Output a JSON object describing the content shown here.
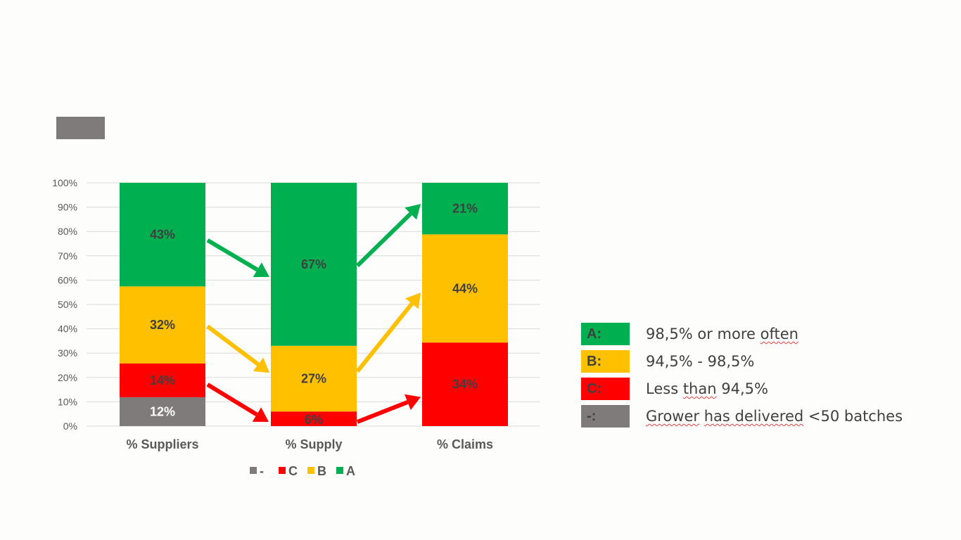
{
  "colors": {
    "A": "#00b050",
    "B": "#ffc000",
    "C": "#ff0000",
    "-": "#7f7b7b",
    "title_block": "#7f7b7b",
    "axis_text": "#595959",
    "label_text": "#404040",
    "grid": "#d9d9d9"
  },
  "chart_data": {
    "type": "bar",
    "stacked": true,
    "categories": [
      "% Suppliers",
      "% Supply",
      "% Claims"
    ],
    "series": [
      {
        "name": "-",
        "values": [
          12,
          0,
          0
        ],
        "labels": [
          "12%",
          "",
          ""
        ]
      },
      {
        "name": "C",
        "values": [
          14,
          6,
          34
        ],
        "labels": [
          "14%",
          "6%",
          "34%"
        ]
      },
      {
        "name": "B",
        "values": [
          32,
          27,
          44
        ],
        "labels": [
          "32%",
          "27%",
          "44%"
        ]
      },
      {
        "name": "A",
        "values": [
          43,
          67,
          21
        ],
        "labels": [
          "43%",
          "67%",
          "21%"
        ]
      }
    ],
    "ylim": [
      0,
      100
    ],
    "yticks": [
      "0%",
      "10%",
      "20%",
      "30%",
      "40%",
      "50%",
      "60%",
      "70%",
      "80%",
      "90%",
      "100%"
    ],
    "grid": true,
    "legend": [
      "-",
      "C",
      "B",
      "A"
    ],
    "legend_position": "bottom",
    "annotations": "arrows between bars in series colors showing shift from suppliers to supply to claims"
  },
  "side_legend": {
    "items": [
      {
        "key": "A:",
        "text": "98,5% or more often"
      },
      {
        "key": "B:",
        "text": "94,5% - 98,5%"
      },
      {
        "key": "C:",
        "text": "Less than 94,5%"
      },
      {
        "key": "-:",
        "text": "Grower has delivered <50 batches"
      }
    ]
  }
}
